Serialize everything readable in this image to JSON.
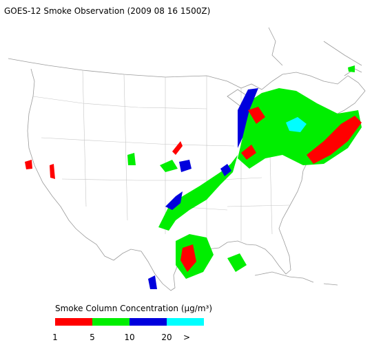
{
  "header": {
    "title": "GOES-12 Smoke Observation (2009 08 16  1500Z)"
  },
  "legend": {
    "title": "Smoke Column Concentration (μg/m³)",
    "colors": [
      "#ff0000",
      "#00ee00",
      "#0000dd",
      "#00ffff"
    ],
    "ticks": [
      1,
      5,
      10,
      20,
      ">"
    ]
  }
}
